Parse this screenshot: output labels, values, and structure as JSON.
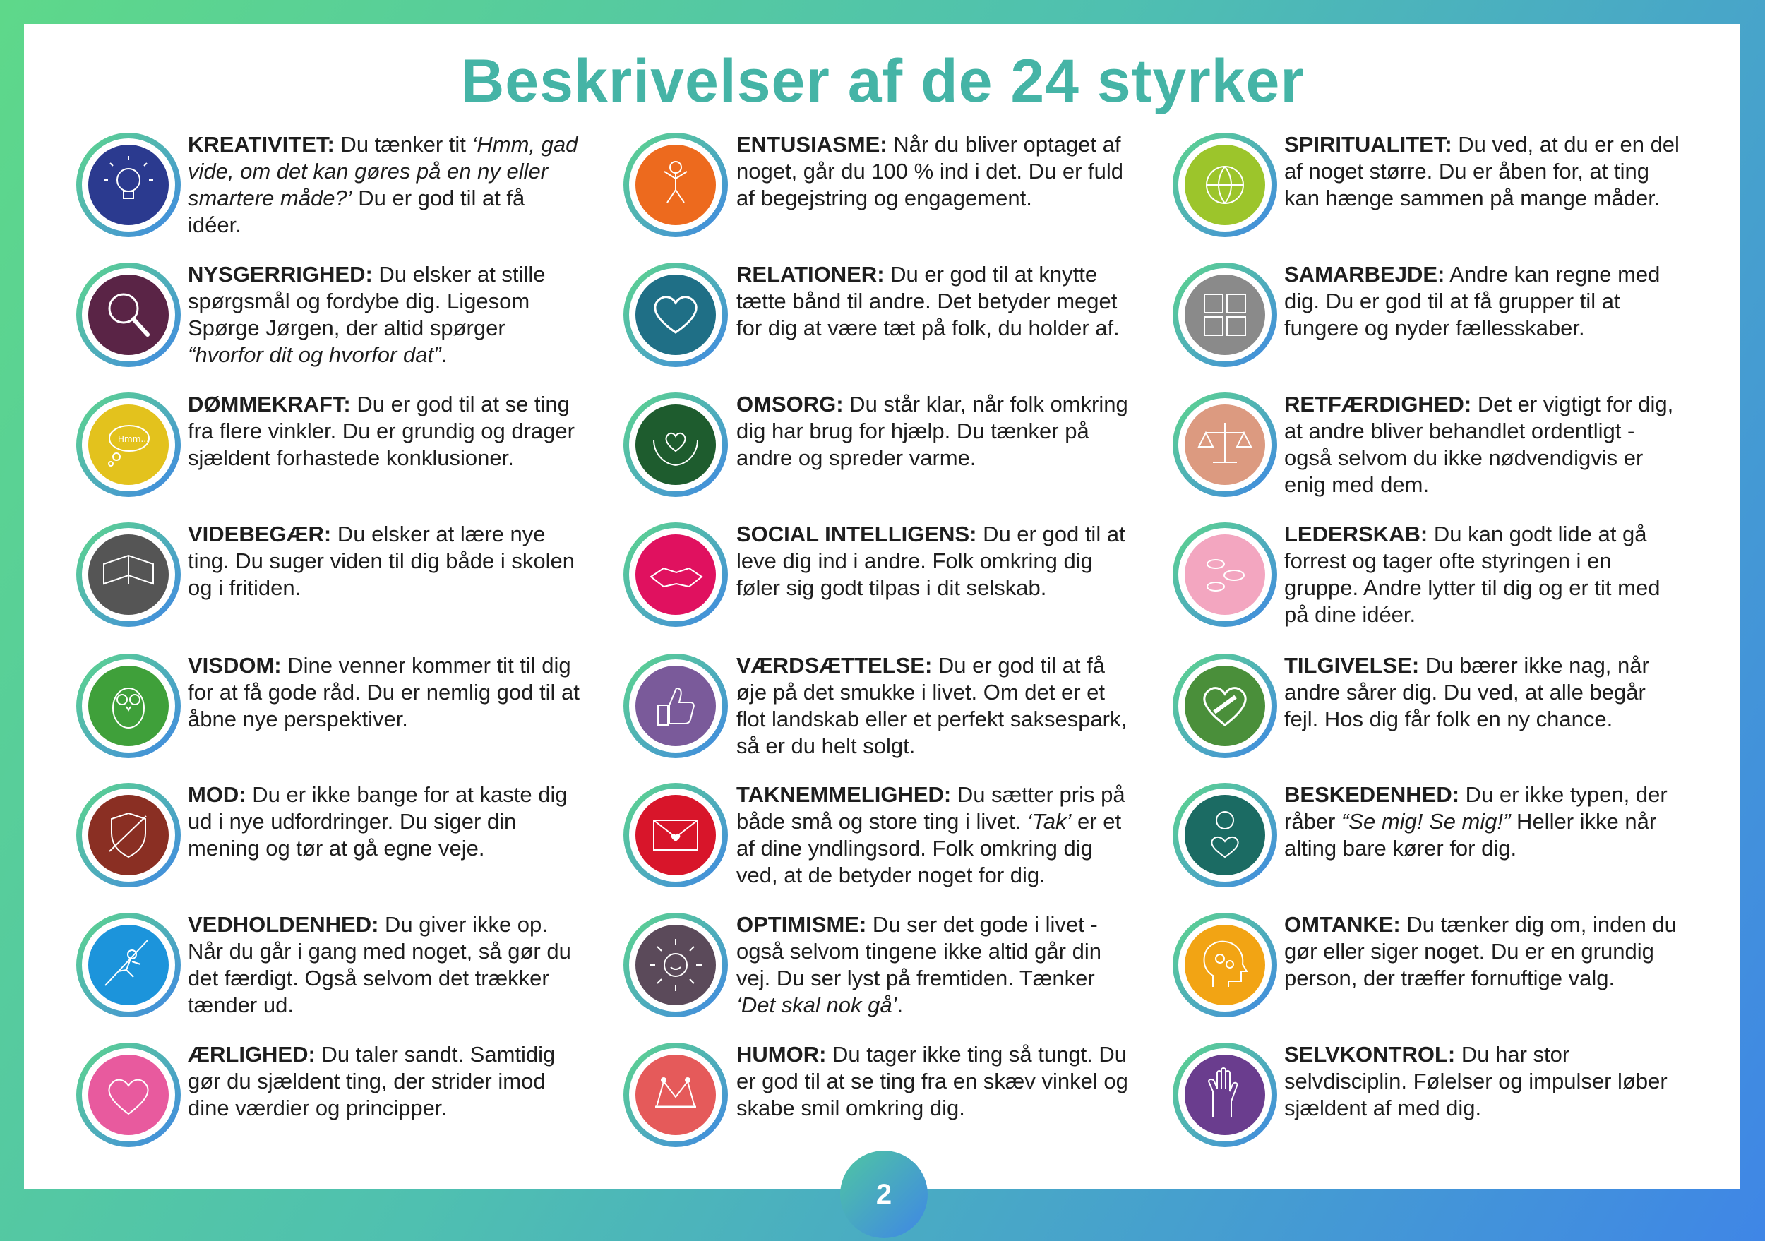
{
  "title": "Beskrivelser af de 24 styrker",
  "page_number": "2",
  "columns": [
    {
      "items": [
        {
          "name": "KREATIVITET:",
          "color": "#2b3a8f",
          "icon": "lightbulb-icon",
          "parts": [
            [
              "t",
              " Du tænker tit "
            ],
            [
              "i",
              "‘Hmm, gad vide, om det kan gøres på en ny eller smartere måde?’"
            ],
            [
              "t",
              " Du er god til at få idéer."
            ]
          ]
        },
        {
          "name": "NYSGERRIGHED:",
          "color": "#5a2446",
          "icon": "magnifier-icon",
          "parts": [
            [
              "t",
              " Du elsker at stille spørgsmål og fordybe dig. Ligesom Spørge Jørgen, der altid spørger "
            ],
            [
              "i",
              "“hvorfor dit og hvorfor dat”"
            ],
            [
              "t",
              "."
            ]
          ]
        },
        {
          "name": "DØMMEKRAFT:",
          "color": "#e3c21d",
          "icon": "thought-bubble-icon",
          "parts": [
            [
              "t",
              " Du er god til at se ting fra flere vinkler. Du er grundig og drager sjældent forhastede konklusioner."
            ]
          ]
        },
        {
          "name": "VIDEBEGÆR:",
          "color": "#555555",
          "icon": "book-icon",
          "parts": [
            [
              "t",
              " Du elsker at lære nye ting. Du suger viden til dig både i skolen og i fritiden."
            ]
          ]
        },
        {
          "name": "VISDOM:",
          "color": "#3fa03a",
          "icon": "owl-icon",
          "parts": [
            [
              "t",
              " Dine venner kommer tit til dig for at få gode råd. Du er nemlig god til at åbne nye perspektiver."
            ]
          ]
        },
        {
          "name": "MOD:",
          "color": "#8a2f23",
          "icon": "shield-icon",
          "parts": [
            [
              "t",
              " Du er ikke bange for at kaste dig ud i nye udfordringer. Du siger din mening og tør at gå egne veje."
            ]
          ]
        },
        {
          "name": "VEDHOLDENHED:",
          "color": "#1c94db",
          "icon": "climber-icon",
          "parts": [
            [
              "t",
              " Du giver ikke op. Når du går i gang med noget, så gør du det færdigt. Også selvom det trækker tænder ud."
            ]
          ]
        },
        {
          "name": "ÆRLIGHED:",
          "color": "#e85a9e",
          "icon": "heart-hand-icon",
          "parts": [
            [
              "t",
              " Du taler sandt. Samtidig gør du sjældent ting, der strider imod dine værdier og principper."
            ]
          ]
        }
      ]
    },
    {
      "items": [
        {
          "name": "ENTUSIASME:",
          "color": "#ed6a1e",
          "icon": "jumping-figure-icon",
          "parts": [
            [
              "t",
              " Når du bliver optaget af noget, går du 100 % ind i det. Du er fuld af begejstring og engagement."
            ]
          ]
        },
        {
          "name": "RELATIONER:",
          "color": "#1f6f86",
          "icon": "heart-icon",
          "parts": [
            [
              "t",
              " Du er god til at knytte tætte bånd til andre. Det betyder meget for dig at være tæt på folk, du holder af."
            ]
          ]
        },
        {
          "name": "OMSORG:",
          "color": "#1e5c2e",
          "icon": "caring-hands-icon",
          "parts": [
            [
              "t",
              " Du står klar, når folk omkring dig har brug for hjælp. Du tænker på andre og spreder varme."
            ]
          ]
        },
        {
          "name": "SOCIAL INTELLIGENS:",
          "color": "#e0115f",
          "icon": "handshake-icon",
          "parts": [
            [
              "t",
              " Du er god til at leve dig ind i andre. Folk omkring dig føler sig godt tilpas i dit selskab."
            ]
          ]
        },
        {
          "name": "VÆRDSÆTTELSE:",
          "color": "#7a5a9a",
          "icon": "thumbs-up-icon",
          "parts": [
            [
              "t",
              " Du er god til at få øje på det smukke i livet. Om det er et flot landskab eller et perfekt saksespark, så er du helt solgt."
            ]
          ]
        },
        {
          "name": "TAKNEMMELIGHED:",
          "color": "#d8152a",
          "icon": "envelope-heart-icon",
          "parts": [
            [
              "t",
              " Du sætter pris på både små og store ting i livet. "
            ],
            [
              "i",
              "‘Tak’"
            ],
            [
              "t",
              " er et af dine yndlingsord. Folk omkring dig ved, at de betyder noget for dig."
            ]
          ]
        },
        {
          "name": "OPTIMISME:",
          "color": "#5b4a5a",
          "icon": "sun-icon",
          "parts": [
            [
              "t",
              " Du ser det gode i livet - også selvom tingene ikke altid går din vej. Du ser lyst på fremtiden. Tænker "
            ],
            [
              "i",
              "‘Det skal nok gå’"
            ],
            [
              "t",
              "."
            ]
          ]
        },
        {
          "name": "HUMOR:",
          "color": "#e55a5a",
          "icon": "jester-hat-icon",
          "parts": [
            [
              "t",
              " Du tager ikke ting så tungt. Du er god til at se ting fra en skæv vinkel og skabe smil omkring dig."
            ]
          ]
        }
      ]
    },
    {
      "items": [
        {
          "name": "SPIRITUALITET:",
          "color": "#9cc52b",
          "icon": "globe-icon",
          "parts": [
            [
              "t",
              " Du ved, at du er en del af noget større. Du er åben for, at ting kan hænge sammen på mange måder."
            ]
          ]
        },
        {
          "name": "SAMARBEJDE:",
          "color": "#8a8a8a",
          "icon": "puzzle-icon",
          "parts": [
            [
              "t",
              " Andre kan regne med dig. Du er god til at få grupper til at fungere og nyder fællesskaber."
            ]
          ]
        },
        {
          "name": "RETFÆRDIGHED:",
          "color": "#dc9a80",
          "icon": "scales-icon",
          "parts": [
            [
              "t",
              " Det er vigtigt for dig, at andre bliver behandlet ordentligt - også selvom du ikke nødvendigvis er enig med dem."
            ]
          ]
        },
        {
          "name": "LEDERSKAB:",
          "color": "#f3a6c0",
          "icon": "fish-icon",
          "parts": [
            [
              "t",
              " Du kan godt lide at gå forrest og tager ofte styringen i en gruppe. Andre lytter til dig og er tit med på dine idéer."
            ]
          ]
        },
        {
          "name": "TILGIVELSE:",
          "color": "#4a8f3a",
          "icon": "patched-heart-icon",
          "parts": [
            [
              "t",
              " Du bærer ikke nag, når andre sårer dig. Du ved, at alle begår fejl. Hos dig får folk en ny chance."
            ]
          ]
        },
        {
          "name": "BESKEDENHED:",
          "color": "#1b6b63",
          "icon": "person-heart-icon",
          "parts": [
            [
              "t",
              " Du er ikke typen, der råber "
            ],
            [
              "i",
              "“Se mig! Se mig!”"
            ],
            [
              "t",
              " Heller ikke når alting bare kører for dig."
            ]
          ]
        },
        {
          "name": "OMTANKE:",
          "color": "#f2a414",
          "icon": "head-gears-icon",
          "parts": [
            [
              "t",
              " Du tænker dig om, inden du gør eller siger noget. Du er en grundig person, der træffer fornuftige valg."
            ]
          ]
        },
        {
          "name": "SELVKONTROL:",
          "color": "#6a3d8e",
          "icon": "open-hand-icon",
          "parts": [
            [
              "t",
              " Du har stor selvdisciplin. Følelser og impulser løber sjældent af med dig."
            ]
          ]
        }
      ]
    }
  ]
}
